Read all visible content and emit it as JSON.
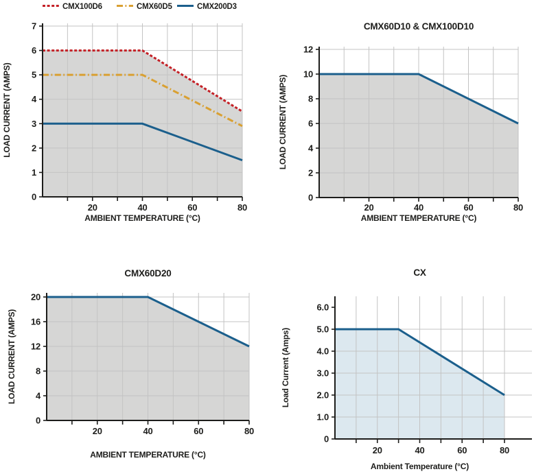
{
  "page": {
    "background": "#ffffff"
  },
  "colors": {
    "axis": "#1d1d1b",
    "text": "#1d1d1b",
    "grid": "#c3c3c3",
    "gray_fill": "#d6d6d5",
    "blue_fill": "#dce8ef",
    "red": "#c42026",
    "orange": "#d9a032",
    "blue": "#1b5f8c"
  },
  "chart_data": [
    {
      "type": "area",
      "title": "",
      "xlabel": "AMBIENT TEMPERATURE (°C)",
      "ylabel": "LOAD CURRENT (AMPS)",
      "xlim": [
        0,
        80
      ],
      "ylim": [
        0,
        7
      ],
      "grid": true,
      "legend_position": "top",
      "legend": [
        "CMX100D6",
        "CMX60D5",
        "CMX200D3"
      ],
      "xticks_labeled": [
        20,
        40,
        60,
        80
      ],
      "xticks_all": [
        10,
        20,
        30,
        40,
        50,
        60,
        70,
        80
      ],
      "yticks": [
        [
          0,
          "0"
        ],
        [
          1,
          "1"
        ],
        [
          2,
          "2"
        ],
        [
          3,
          "3"
        ],
        [
          4,
          "4"
        ],
        [
          5,
          "5"
        ],
        [
          6,
          "6"
        ],
        [
          7,
          "7"
        ]
      ],
      "fill": {
        "under": "CMX100D6",
        "color_key": "gray_fill"
      },
      "series": [
        {
          "name": "CMX100D6",
          "style": "dashed",
          "color_key": "red",
          "points": [
            [
              0,
              6
            ],
            [
              40,
              6
            ],
            [
              80,
              3.5
            ]
          ]
        },
        {
          "name": "CMX60D5",
          "style": "dashdot",
          "color_key": "orange",
          "points": [
            [
              0,
              5
            ],
            [
              40,
              5
            ],
            [
              80,
              2.9
            ]
          ]
        },
        {
          "name": "CMX200D3",
          "style": "solid",
          "color_key": "blue",
          "points": [
            [
              0,
              3
            ],
            [
              40,
              3
            ],
            [
              80,
              1.5
            ]
          ]
        }
      ]
    },
    {
      "type": "area",
      "title": "CMX60D10 & CMX100D10",
      "xlabel": "AMBIENT TEMPERATURE (°C)",
      "ylabel": "LOAD CURRENT (AMPS)",
      "xlim": [
        0,
        80
      ],
      "ylim": [
        0,
        12
      ],
      "grid": true,
      "xticks_labeled": [
        20,
        40,
        60,
        80
      ],
      "xticks_all": [
        10,
        20,
        30,
        40,
        50,
        60,
        70,
        80
      ],
      "yticks": [
        [
          0,
          "0"
        ],
        [
          2,
          "2"
        ],
        [
          4,
          "4"
        ],
        [
          6,
          "6"
        ],
        [
          8,
          "8"
        ],
        [
          10,
          "10"
        ],
        [
          12,
          "12"
        ]
      ],
      "fill": {
        "under": "CMX60D10 & CMX100D10",
        "color_key": "gray_fill"
      },
      "series": [
        {
          "name": "CMX60D10 & CMX100D10",
          "style": "solid",
          "color_key": "blue",
          "points": [
            [
              0,
              10
            ],
            [
              40,
              10
            ],
            [
              80,
              6
            ]
          ]
        }
      ]
    },
    {
      "type": "area",
      "title": "CMX60D20",
      "xlabel": "AMBIENT TEMPERATURE (°C)",
      "ylabel": "LOAD CURRENT (AMPS)",
      "xlim": [
        0,
        80
      ],
      "ylim": [
        0,
        20
      ],
      "grid": true,
      "xticks_labeled": [
        20,
        40,
        60,
        80
      ],
      "xticks_all": [
        10,
        20,
        30,
        40,
        50,
        60,
        70,
        80
      ],
      "yticks": [
        [
          0,
          "0"
        ],
        [
          4,
          "4"
        ],
        [
          8,
          "8"
        ],
        [
          12,
          "12"
        ],
        [
          16,
          "16"
        ],
        [
          20,
          "20"
        ]
      ],
      "fill": {
        "under": "CMX60D20",
        "color_key": "gray_fill"
      },
      "series": [
        {
          "name": "CMX60D20",
          "style": "solid",
          "color_key": "blue",
          "points": [
            [
              0,
              20
            ],
            [
              40,
              20
            ],
            [
              80,
              12
            ]
          ]
        }
      ]
    },
    {
      "type": "area",
      "title": "CX",
      "xlabel": "Ambient Temperature (°C)",
      "ylabel": "Load Current (Amps)",
      "xlim": [
        0,
        80
      ],
      "ylim": [
        0,
        6
      ],
      "grid": true,
      "xticks_labeled": [
        20,
        40,
        60,
        80
      ],
      "xticks_all": [
        10,
        20,
        30,
        40,
        50,
        60,
        70,
        80
      ],
      "yticks": [
        [
          0,
          "0"
        ],
        [
          1,
          "1.0"
        ],
        [
          2,
          "2.0"
        ],
        [
          3,
          "3.0"
        ],
        [
          4,
          "4.0"
        ],
        [
          5,
          "5.0"
        ],
        [
          6,
          "6.0"
        ]
      ],
      "hgrid_yticks": [
        1,
        2,
        3,
        4,
        5
      ],
      "fill": {
        "under": "CX",
        "color_key": "blue_fill"
      },
      "series": [
        {
          "name": "CX",
          "style": "solid",
          "color_key": "blue",
          "points": [
            [
              0,
              5
            ],
            [
              30,
              5
            ],
            [
              80,
              2
            ]
          ]
        }
      ]
    }
  ]
}
